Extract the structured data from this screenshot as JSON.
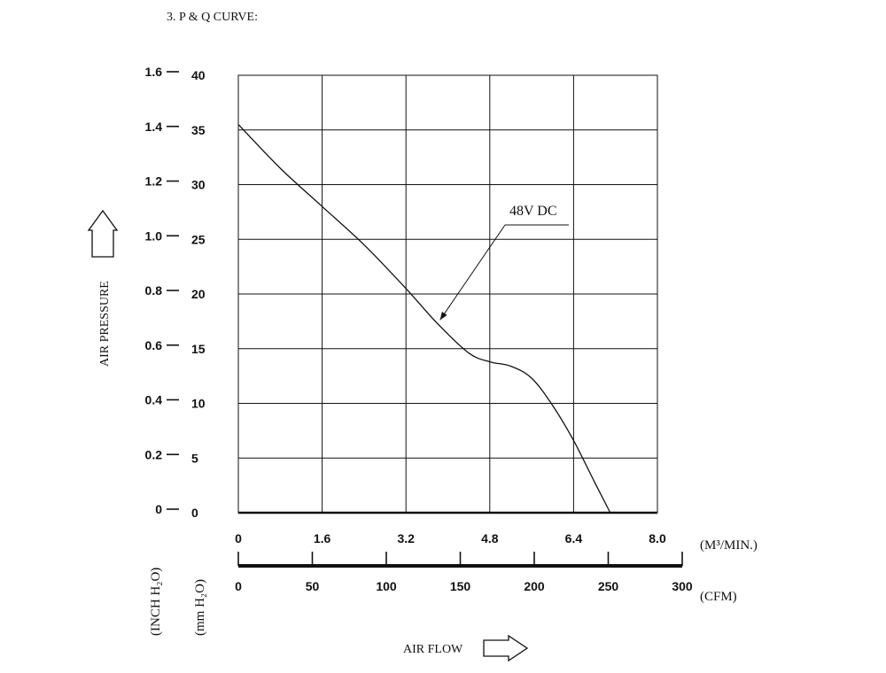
{
  "heading": "3. P & Q CURVE:",
  "chart_data": {
    "type": "line",
    "title": "",
    "ylabel": "AIR PRESSURE",
    "xlabel": "AIR FLOW",
    "y_axes": [
      {
        "unit": "(INCH H₂O)",
        "ticks": [
          "0",
          "0.2",
          "0.4",
          "0.6",
          "0.8",
          "1.0",
          "1.2",
          "1.4",
          "1.6"
        ],
        "ylim": [
          0,
          1.6
        ]
      },
      {
        "unit": "(mm H₂O)",
        "ticks": [
          "0",
          "5",
          "10",
          "15",
          "20",
          "25",
          "30",
          "35",
          "40"
        ],
        "ylim": [
          0,
          40
        ]
      }
    ],
    "x_axes": [
      {
        "unit": "(M³/MIN.)",
        "ticks": [
          "0",
          "1.6",
          "3.2",
          "4.8",
          "6.4",
          "8.0"
        ],
        "xlim": [
          0,
          8.0
        ]
      },
      {
        "unit": "(CFM)",
        "ticks": [
          "0",
          "50",
          "100",
          "150",
          "200",
          "250",
          "300"
        ],
        "xlim": [
          0,
          300
        ]
      }
    ],
    "grid": true,
    "series": [
      {
        "name": "48V DC",
        "x_unit": "M³/MIN.",
        "y_unit": "mm H₂O",
        "x": [
          0,
          0.8,
          1.6,
          2.4,
          3.2,
          3.8,
          4.4,
          4.8,
          5.2,
          5.6,
          6.0,
          6.4,
          6.8,
          7.1
        ],
        "y": [
          35.5,
          31.5,
          28.0,
          24.5,
          20.5,
          17.3,
          14.6,
          13.8,
          13.4,
          12.3,
          9.8,
          6.6,
          2.8,
          0
        ]
      }
    ]
  }
}
